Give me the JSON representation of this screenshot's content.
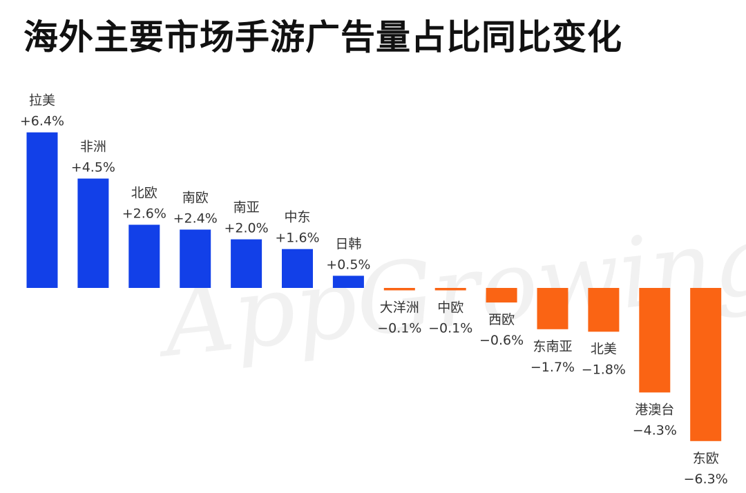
{
  "title": "海外主要市场手游广告量占比同比变化",
  "watermark": "AppGrowing",
  "colors": {
    "positive": "#1240e8",
    "negative": "#fa6414"
  },
  "chart_data": {
    "type": "bar",
    "title": "海外主要市场手游广告量占比同比变化",
    "categories": [
      "拉美",
      "非洲",
      "北欧",
      "南欧",
      "南亚",
      "中东",
      "日韩",
      "大洋洲",
      "中欧",
      "西欧",
      "东南亚",
      "北美",
      "港澳台",
      "东欧"
    ],
    "values": [
      6.4,
      4.5,
      2.6,
      2.4,
      2.0,
      1.6,
      0.5,
      -0.1,
      -0.1,
      -0.6,
      -1.7,
      -1.8,
      -4.3,
      -6.3
    ],
    "value_labels": [
      "+6.4%",
      "+4.5%",
      "+2.6%",
      "+2.4%",
      "+2.0%",
      "+1.6%",
      "+0.5%",
      "−0.1%",
      "−0.1%",
      "−0.6%",
      "−1.7%",
      "−1.8%",
      "−4.3%",
      "−6.3%"
    ],
    "unit": "%",
    "xlabel": "",
    "ylabel": "",
    "ylim": [
      -6.3,
      6.4
    ],
    "grid": false,
    "legend": "none"
  }
}
